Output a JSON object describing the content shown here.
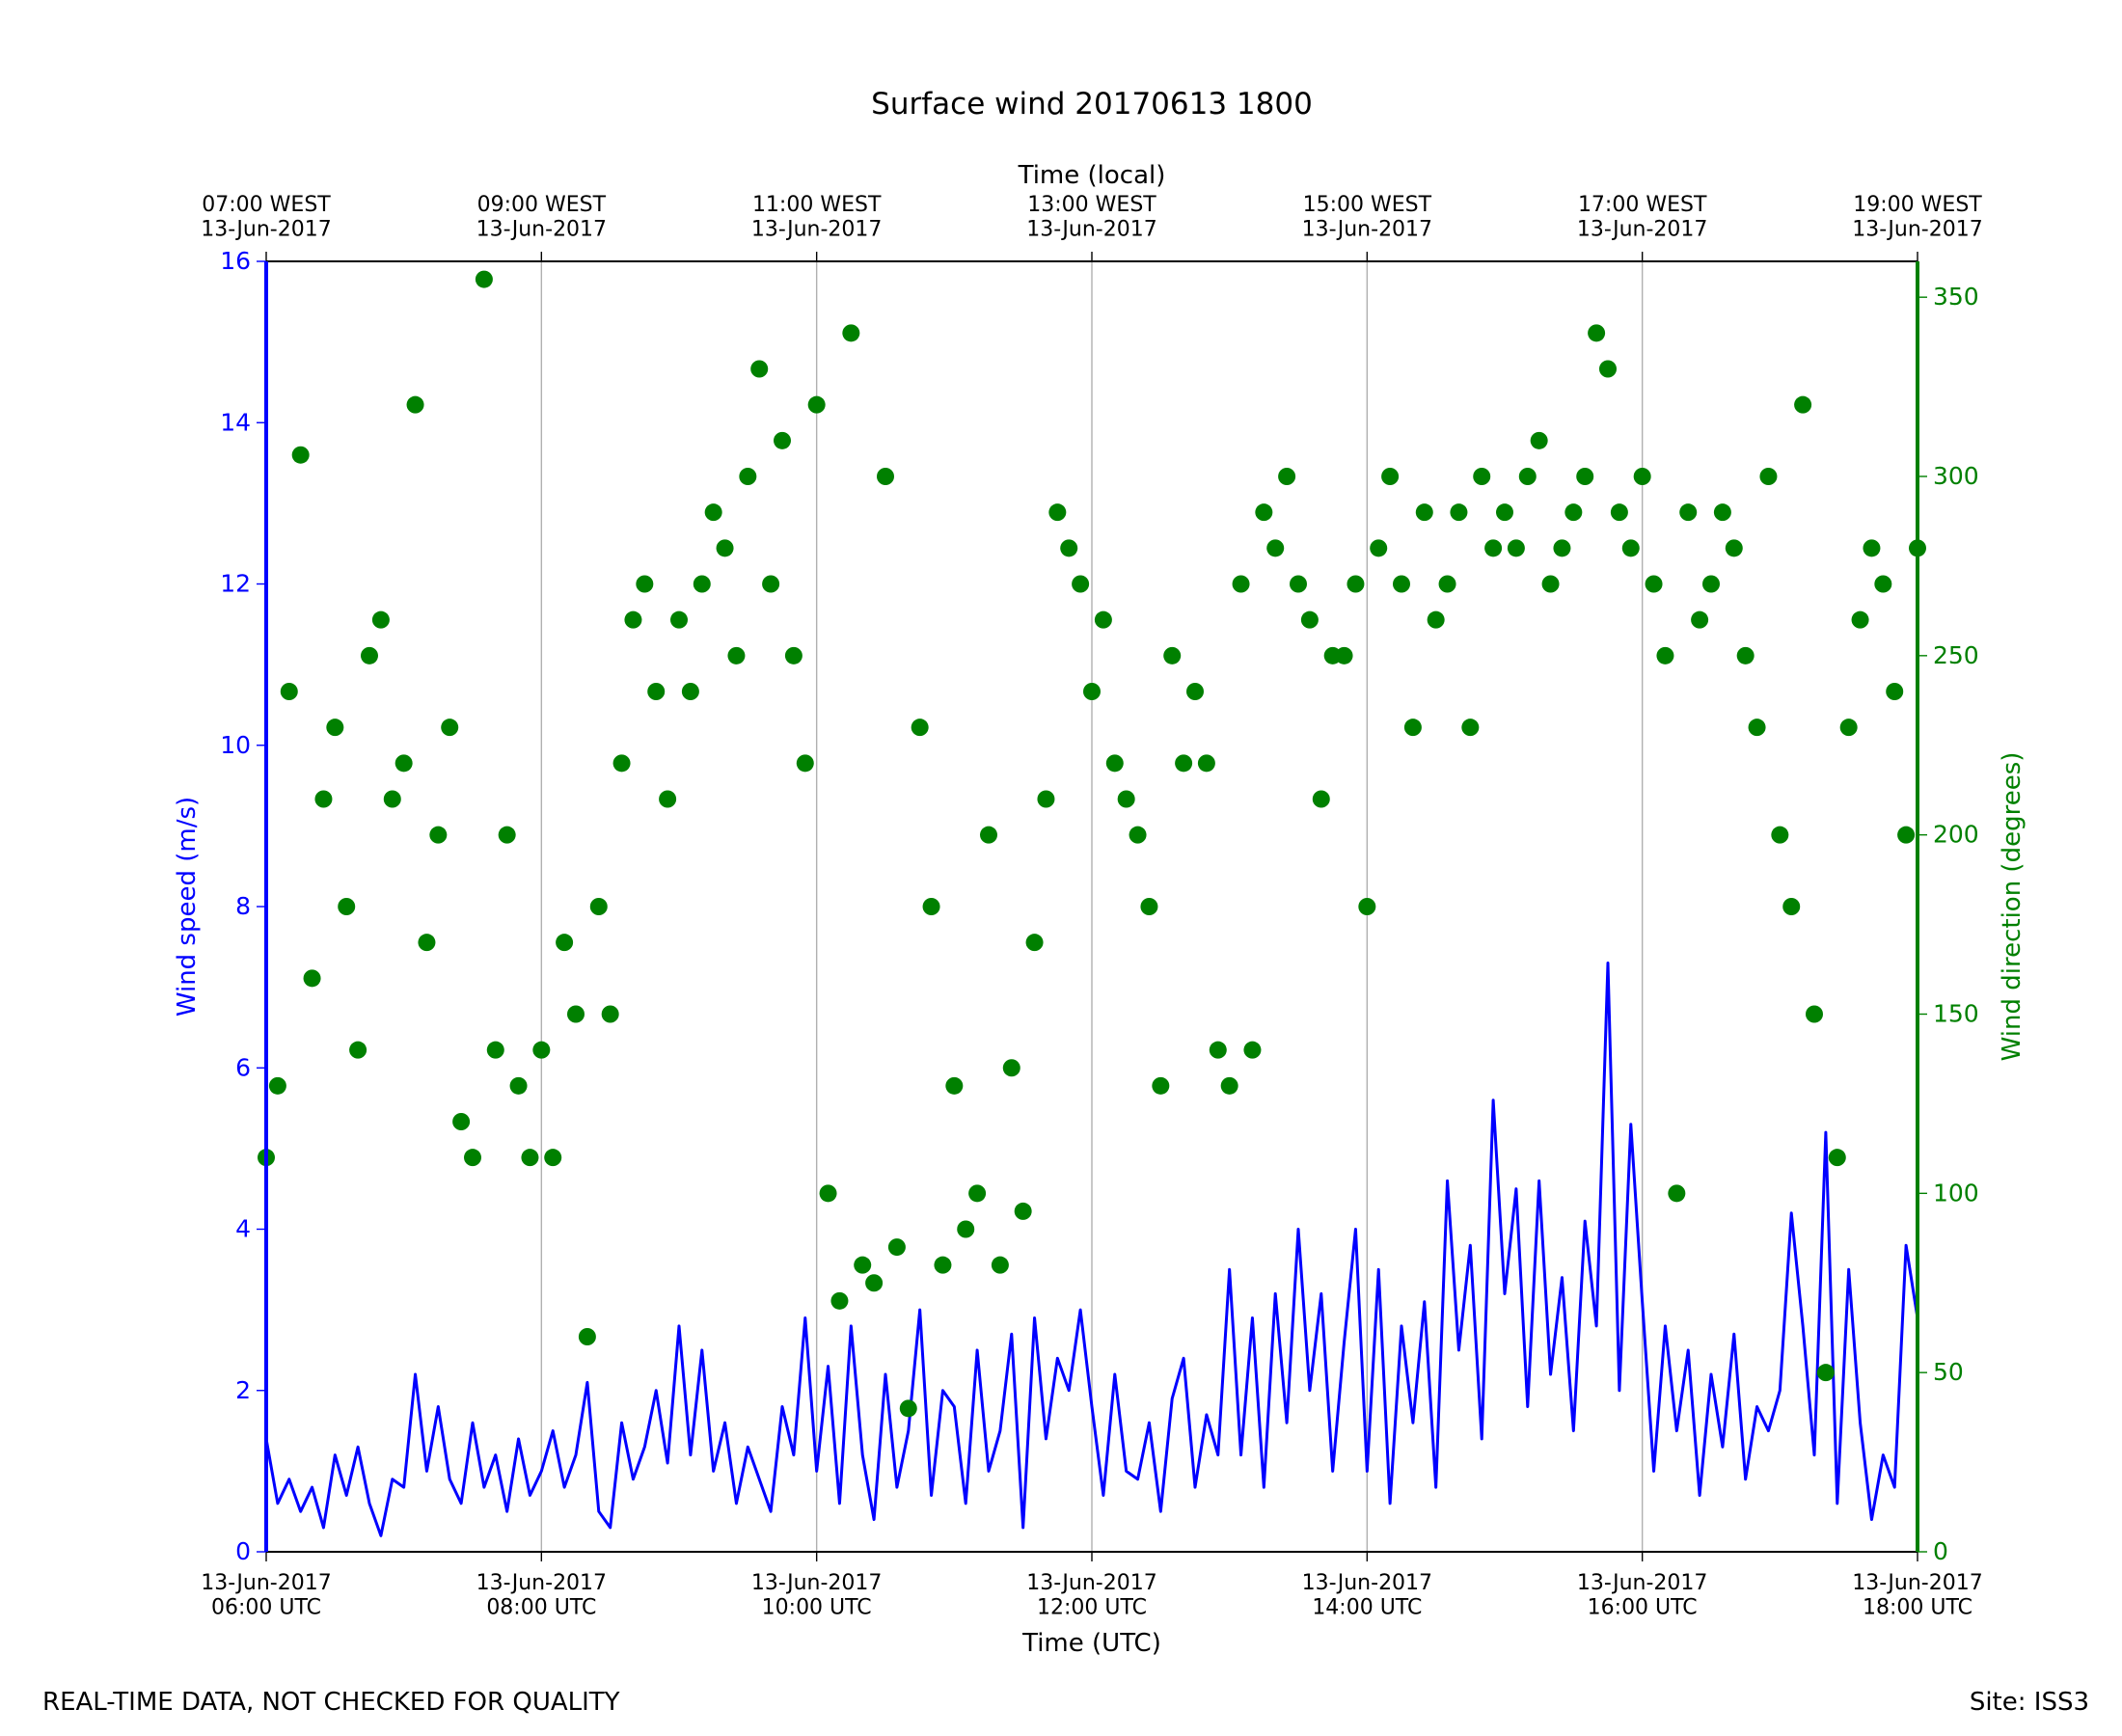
{
  "chart_data": {
    "type": "line",
    "title": "Surface wind 20170613 1800",
    "x_label": "Time (UTC)",
    "x2_label": "Time (local)",
    "y_label": "Wind speed (m/s)",
    "y2_label": "Wind direction (degrees)",
    "annotations": [
      "REAL-TIME DATA, NOT CHECKED FOR QUALITY",
      "Site: ISS3"
    ],
    "xlim": [
      "2017-06-13 06:00",
      "2017-06-13 18:00"
    ],
    "xticks": [
      {
        "value": "2017-06-13 06:00",
        "label": "13-Jun-2017\n06:00 UTC"
      },
      {
        "value": "2017-06-13 08:00",
        "label": "13-Jun-2017\n08:00 UTC"
      },
      {
        "value": "2017-06-13 10:00",
        "label": "13-Jun-2017\n10:00 UTC"
      },
      {
        "value": "2017-06-13 12:00",
        "label": "13-Jun-2017\n12:00 UTC"
      },
      {
        "value": "2017-06-13 14:00",
        "label": "13-Jun-2017\n14:00 UTC"
      },
      {
        "value": "2017-06-13 16:00",
        "label": "13-Jun-2017\n16:00 UTC"
      },
      {
        "value": "2017-06-13 18:00",
        "label": "13-Jun-2017\n18:00 UTC"
      }
    ],
    "x2ticks": [
      {
        "value": "2017-06-13 06:00",
        "label": "07:00 WEST\n13-Jun-2017"
      },
      {
        "value": "2017-06-13 08:00",
        "label": "09:00 WEST\n13-Jun-2017"
      },
      {
        "value": "2017-06-13 10:00",
        "label": "11:00 WEST\n13-Jun-2017"
      },
      {
        "value": "2017-06-13 12:00",
        "label": "13:00 WEST\n13-Jun-2017"
      },
      {
        "value": "2017-06-13 14:00",
        "label": "15:00 WEST\n13-Jun-2017"
      },
      {
        "value": "2017-06-13 16:00",
        "label": "17:00 WEST\n13-Jun-2017"
      },
      {
        "value": "2017-06-13 18:00",
        "label": "19:00 WEST\n13-Jun-2017"
      }
    ],
    "ylim": [
      0,
      16
    ],
    "yticks": [
      0,
      2,
      4,
      6,
      8,
      10,
      12,
      14,
      16
    ],
    "y2lim": [
      0,
      360
    ],
    "y2ticks": [
      0,
      50,
      100,
      150,
      200,
      250,
      300,
      350
    ],
    "grid": "x",
    "x": [
      "2017-06-13 06:00",
      "2017-06-13 06:05",
      "2017-06-13 06:10",
      "2017-06-13 06:15",
      "2017-06-13 06:20",
      "2017-06-13 06:25",
      "2017-06-13 06:30",
      "2017-06-13 06:35",
      "2017-06-13 06:40",
      "2017-06-13 06:45",
      "2017-06-13 06:50",
      "2017-06-13 06:55",
      "2017-06-13 07:00",
      "2017-06-13 07:05",
      "2017-06-13 07:10",
      "2017-06-13 07:15",
      "2017-06-13 07:20",
      "2017-06-13 07:25",
      "2017-06-13 07:30",
      "2017-06-13 07:35",
      "2017-06-13 07:40",
      "2017-06-13 07:45",
      "2017-06-13 07:50",
      "2017-06-13 07:55",
      "2017-06-13 08:00",
      "2017-06-13 08:05",
      "2017-06-13 08:10",
      "2017-06-13 08:15",
      "2017-06-13 08:20",
      "2017-06-13 08:25",
      "2017-06-13 08:30",
      "2017-06-13 08:35",
      "2017-06-13 08:40",
      "2017-06-13 08:45",
      "2017-06-13 08:50",
      "2017-06-13 08:55",
      "2017-06-13 09:00",
      "2017-06-13 09:05",
      "2017-06-13 09:10",
      "2017-06-13 09:15",
      "2017-06-13 09:20",
      "2017-06-13 09:25",
      "2017-06-13 09:30",
      "2017-06-13 09:35",
      "2017-06-13 09:40",
      "2017-06-13 09:45",
      "2017-06-13 09:50",
      "2017-06-13 09:55",
      "2017-06-13 10:00",
      "2017-06-13 10:05",
      "2017-06-13 10:10",
      "2017-06-13 10:15",
      "2017-06-13 10:20",
      "2017-06-13 10:25",
      "2017-06-13 10:30",
      "2017-06-13 10:35",
      "2017-06-13 10:40",
      "2017-06-13 10:45",
      "2017-06-13 10:50",
      "2017-06-13 10:55",
      "2017-06-13 11:00",
      "2017-06-13 11:05",
      "2017-06-13 11:10",
      "2017-06-13 11:15",
      "2017-06-13 11:20",
      "2017-06-13 11:25",
      "2017-06-13 11:30",
      "2017-06-13 11:35",
      "2017-06-13 11:40",
      "2017-06-13 11:45",
      "2017-06-13 11:50",
      "2017-06-13 11:55",
      "2017-06-13 12:00",
      "2017-06-13 12:05",
      "2017-06-13 12:10",
      "2017-06-13 12:15",
      "2017-06-13 12:20",
      "2017-06-13 12:25",
      "2017-06-13 12:30",
      "2017-06-13 12:35",
      "2017-06-13 12:40",
      "2017-06-13 12:45",
      "2017-06-13 12:50",
      "2017-06-13 12:55",
      "2017-06-13 13:00",
      "2017-06-13 13:05",
      "2017-06-13 13:10",
      "2017-06-13 13:15",
      "2017-06-13 13:20",
      "2017-06-13 13:25",
      "2017-06-13 13:30",
      "2017-06-13 13:35",
      "2017-06-13 13:40",
      "2017-06-13 13:45",
      "2017-06-13 13:50",
      "2017-06-13 13:55",
      "2017-06-13 14:00",
      "2017-06-13 14:05",
      "2017-06-13 14:10",
      "2017-06-13 14:15",
      "2017-06-13 14:20",
      "2017-06-13 14:25",
      "2017-06-13 14:30",
      "2017-06-13 14:35",
      "2017-06-13 14:40",
      "2017-06-13 14:45",
      "2017-06-13 14:50",
      "2017-06-13 14:55",
      "2017-06-13 15:00",
      "2017-06-13 15:05",
      "2017-06-13 15:10",
      "2017-06-13 15:15",
      "2017-06-13 15:20",
      "2017-06-13 15:25",
      "2017-06-13 15:30",
      "2017-06-13 15:35",
      "2017-06-13 15:40",
      "2017-06-13 15:45",
      "2017-06-13 15:50",
      "2017-06-13 15:55",
      "2017-06-13 16:00",
      "2017-06-13 16:05",
      "2017-06-13 16:10",
      "2017-06-13 16:15",
      "2017-06-13 16:20",
      "2017-06-13 16:25",
      "2017-06-13 16:30",
      "2017-06-13 16:35",
      "2017-06-13 16:40",
      "2017-06-13 16:45",
      "2017-06-13 16:50",
      "2017-06-13 16:55",
      "2017-06-13 17:00",
      "2017-06-13 17:05",
      "2017-06-13 17:10",
      "2017-06-13 17:15",
      "2017-06-13 17:20",
      "2017-06-13 17:25",
      "2017-06-13 17:30",
      "2017-06-13 17:35",
      "2017-06-13 17:40",
      "2017-06-13 17:45",
      "2017-06-13 17:50",
      "2017-06-13 17:55",
      "2017-06-13 18:00"
    ],
    "series": [
      {
        "name": "Wind speed",
        "type": "line",
        "axis": "y",
        "color": "#0000ff",
        "values": [
          1.4,
          0.6,
          0.9,
          0.5,
          0.8,
          0.3,
          1.2,
          0.7,
          1.3,
          0.6,
          0.2,
          0.9,
          0.8,
          2.2,
          1.0,
          1.8,
          0.9,
          0.6,
          1.6,
          0.8,
          1.2,
          0.5,
          1.4,
          0.7,
          1.0,
          1.5,
          0.8,
          1.2,
          2.1,
          0.5,
          0.3,
          1.6,
          0.9,
          1.3,
          2.0,
          1.1,
          2.8,
          1.2,
          2.5,
          1.0,
          1.6,
          0.6,
          1.3,
          0.9,
          0.5,
          1.8,
          1.2,
          2.9,
          1.0,
          2.3,
          0.6,
          2.8,
          1.2,
          0.4,
          2.2,
          0.8,
          1.5,
          3.0,
          0.7,
          2.0,
          1.8,
          0.6,
          2.5,
          1.0,
          1.5,
          2.7,
          0.3,
          2.9,
          1.4,
          2.4,
          2.0,
          3.0,
          1.8,
          0.7,
          2.2,
          1.0,
          0.9,
          1.6,
          0.5,
          1.9,
          2.4,
          0.8,
          1.7,
          1.2,
          3.5,
          1.2,
          2.9,
          0.8,
          3.2,
          1.6,
          4.0,
          2.0,
          3.2,
          1.0,
          2.6,
          4.0,
          1.0,
          3.5,
          0.6,
          2.8,
          1.6,
          3.1,
          0.8,
          4.6,
          2.5,
          3.8,
          1.4,
          5.6,
          3.2,
          4.5,
          1.8,
          4.6,
          2.2,
          3.4,
          1.5,
          4.1,
          2.8,
          7.3,
          2.0,
          5.3,
          3.1,
          1.0,
          2.8,
          1.5,
          2.5,
          0.7,
          2.2,
          1.3,
          2.7,
          0.9,
          1.8,
          1.5,
          2.0,
          4.2,
          2.8,
          1.2,
          5.2,
          0.6,
          3.5,
          1.6,
          0.4,
          1.2,
          0.8,
          3.8,
          2.9
        ]
      },
      {
        "name": "Wind direction",
        "type": "scatter",
        "axis": "y2",
        "color": "#008000",
        "values": [
          110,
          130,
          240,
          306,
          160,
          210,
          230,
          180,
          140,
          250,
          260,
          210,
          220,
          320,
          170,
          200,
          230,
          120,
          110,
          355,
          140,
          200,
          130,
          110,
          140,
          110,
          170,
          150,
          60,
          180,
          150,
          220,
          260,
          270,
          240,
          210,
          260,
          240,
          270,
          290,
          280,
          250,
          300,
          330,
          270,
          310,
          250,
          220,
          320,
          100,
          70,
          340,
          80,
          75,
          300,
          85,
          40,
          230,
          180,
          80,
          130,
          90,
          100,
          200,
          80,
          135,
          95,
          170,
          210,
          290,
          280,
          270,
          240,
          260,
          220,
          210,
          200,
          180,
          130,
          250,
          220,
          240,
          220,
          140,
          130,
          270,
          140,
          290,
          280,
          300,
          270,
          260,
          210,
          250,
          250,
          270,
          180,
          280,
          300,
          270,
          230,
          290,
          260,
          270,
          290,
          230,
          300,
          280,
          290,
          280,
          300,
          310,
          270,
          280,
          290,
          300,
          340,
          330,
          290,
          280,
          300,
          270,
          250,
          100,
          290,
          260,
          270,
          290,
          280,
          250,
          230,
          300,
          200,
          180,
          320,
          150,
          50,
          110,
          230,
          260,
          280,
          270,
          240,
          200,
          280
        ]
      }
    ]
  }
}
